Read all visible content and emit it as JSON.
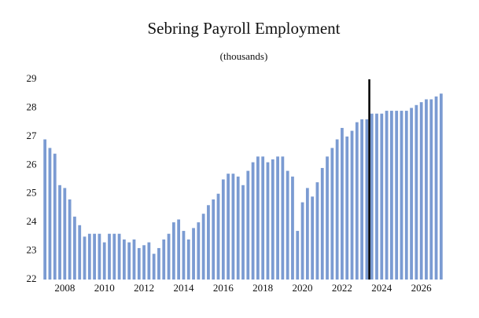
{
  "chart_data": {
    "type": "bar",
    "title": "Sebring Payroll Employment",
    "subtitle": "(thousands)",
    "categories": [
      null,
      null,
      null,
      null,
      "2008",
      null,
      null,
      null,
      null,
      null,
      null,
      null,
      "2010",
      null,
      null,
      null,
      null,
      null,
      null,
      null,
      "2012",
      null,
      null,
      null,
      null,
      null,
      null,
      null,
      "2014",
      null,
      null,
      null,
      null,
      null,
      null,
      null,
      "2016",
      null,
      null,
      null,
      null,
      null,
      null,
      null,
      "2018",
      null,
      null,
      null,
      null,
      null,
      null,
      null,
      "2020",
      null,
      null,
      null,
      null,
      null,
      null,
      null,
      "2022",
      null,
      null,
      null,
      null,
      null,
      null,
      null,
      "2024",
      null,
      null,
      null,
      null,
      null,
      null,
      null,
      "2026",
      null,
      null,
      null,
      null
    ],
    "values": [
      26.9,
      26.6,
      26.4,
      25.3,
      25.2,
      24.8,
      24.2,
      23.9,
      23.5,
      23.6,
      23.6,
      23.6,
      23.3,
      23.6,
      23.6,
      23.6,
      23.4,
      23.3,
      23.4,
      23.1,
      23.2,
      23.3,
      22.9,
      23.1,
      23.4,
      23.6,
      24.0,
      24.1,
      23.7,
      23.4,
      23.8,
      24.0,
      24.3,
      24.6,
      24.8,
      25.0,
      25.5,
      25.7,
      25.7,
      25.6,
      25.3,
      25.8,
      26.1,
      26.3,
      26.3,
      26.1,
      26.2,
      26.3,
      26.3,
      25.8,
      25.6,
      23.7,
      24.7,
      25.2,
      24.9,
      25.4,
      25.9,
      26.3,
      26.6,
      26.9,
      27.3,
      27.0,
      27.2,
      27.5,
      27.6,
      27.6,
      27.8,
      27.8,
      27.8,
      27.9,
      27.9,
      27.9,
      27.9,
      27.9,
      28.0,
      28.1,
      28.2,
      28.3,
      28.3,
      28.4,
      28.5
    ],
    "color": "#7b9bd2",
    "ylim": [
      22,
      29
    ],
    "yticks": [
      22,
      23,
      24,
      25,
      26,
      27,
      28,
      29
    ],
    "grid": false,
    "vline_after_index": 65
  }
}
